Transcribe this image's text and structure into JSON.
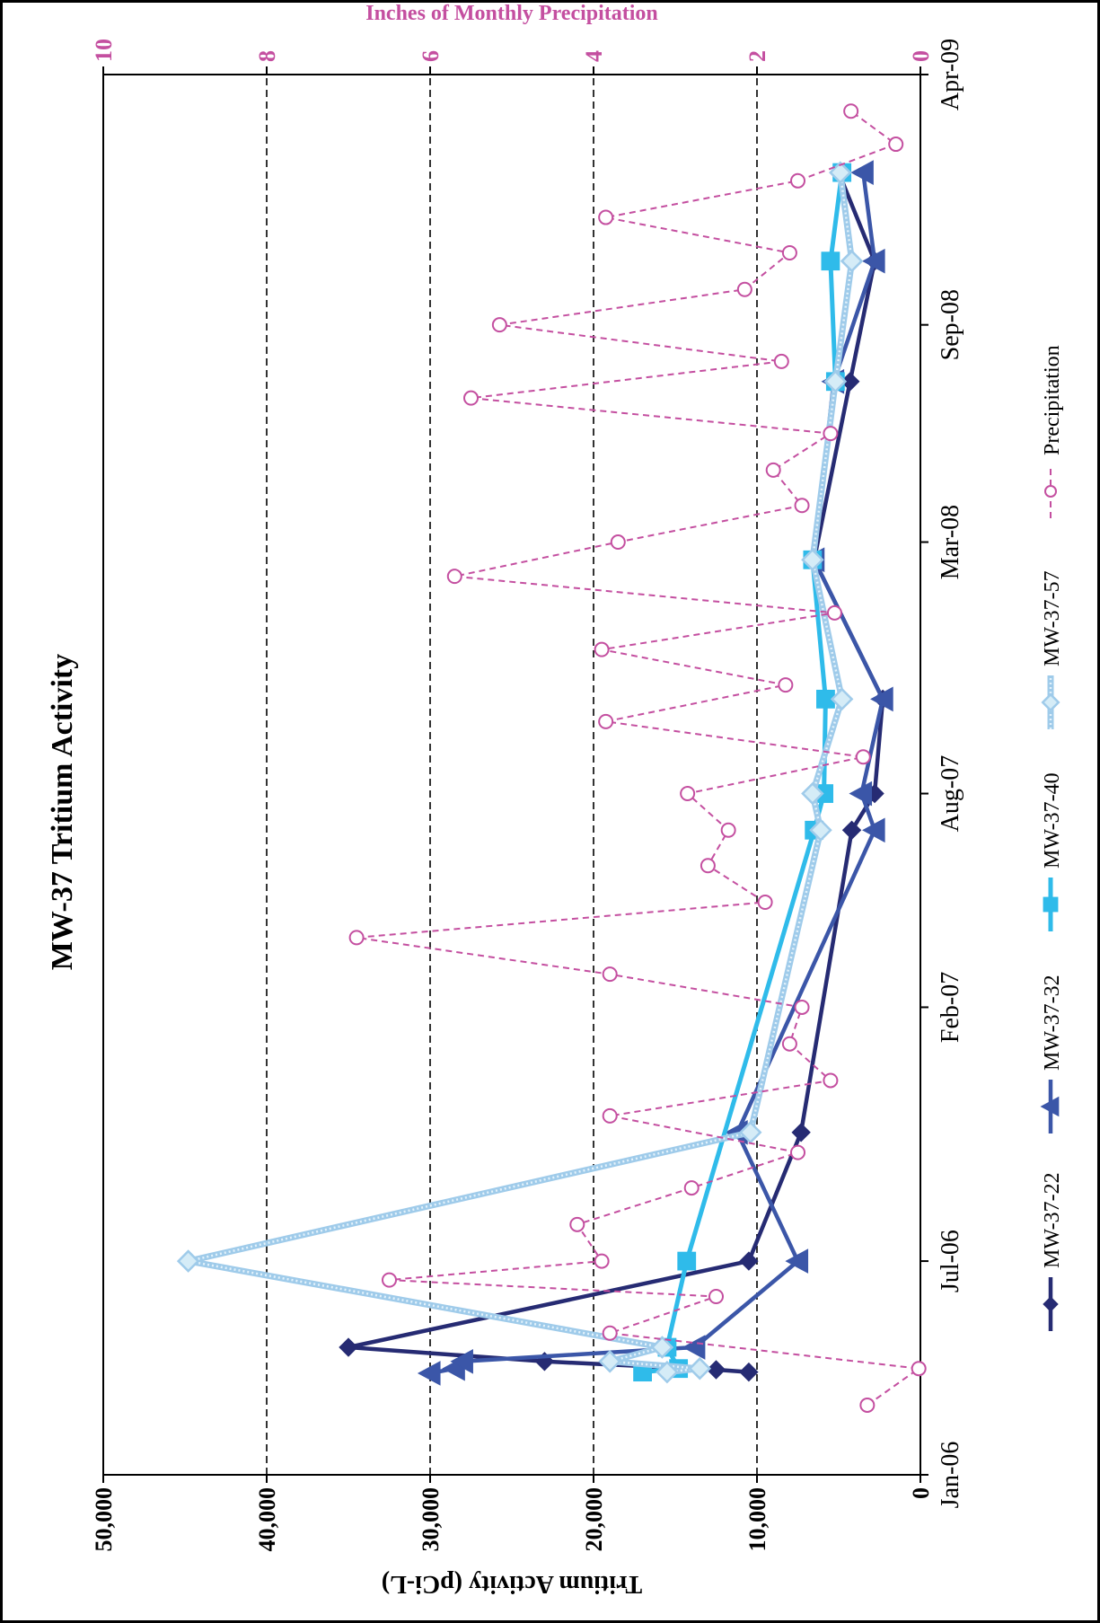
{
  "chart_data": {
    "type": "line",
    "title": "MW-37 Tritium Activity",
    "xlabel": "",
    "ylabel": "Tritium Activity (pCi-L)",
    "y2label": "Inches of Monthly Precipitation",
    "xlim": [
      "2006-01-01",
      "2009-04-01"
    ],
    "ylim": [
      0,
      50000
    ],
    "y2lim": [
      0,
      10
    ],
    "grid": "horizontal dashed",
    "legend_position": "bottom",
    "colors": {
      "MW-37-22": "#262b73",
      "MW-37-32": "#3b56a8",
      "MW-37-40": "#2fbbea",
      "MW-37-57": "#9fcbea",
      "Precipitation": "#c44fa0",
      "title": "#000000",
      "precip_axis": "#c44fa0"
    },
    "x_ticks": [
      {
        "date": "2006-01-01",
        "label": "Jan-06"
      },
      {
        "date": "2006-07-01",
        "label": "Jul-06"
      },
      {
        "date": "2007-02-01",
        "label": "Feb-07"
      },
      {
        "date": "2007-08-01",
        "label": "Aug-07"
      },
      {
        "date": "2008-03-01",
        "label": "Mar-08"
      },
      {
        "date": "2008-09-01",
        "label": "Sep-08"
      },
      {
        "date": "2009-04-01",
        "label": "Apr-09"
      }
    ],
    "y_ticks": [
      {
        "value": 0,
        "label": "0"
      },
      {
        "value": 10000,
        "label": "10,000"
      },
      {
        "value": 20000,
        "label": "20,000"
      },
      {
        "value": 30000,
        "label": "30,000"
      },
      {
        "value": 40000,
        "label": "40,000"
      },
      {
        "value": 50000,
        "label": "50,000"
      }
    ],
    "y2_ticks": [
      {
        "value": 0,
        "label": "0"
      },
      {
        "value": 2,
        "label": "2"
      },
      {
        "value": 4,
        "label": "4"
      },
      {
        "value": 6,
        "label": "6"
      },
      {
        "value": 8,
        "label": "8"
      },
      {
        "value": 10,
        "label": "10"
      }
    ],
    "series": [
      {
        "name": "MW-37-22",
        "axis": "left",
        "marker": "diamond",
        "points": [
          {
            "x": "2006-03-29",
            "y": 10500
          },
          {
            "x": "2006-03-31",
            "y": 12500
          },
          {
            "x": "2006-04-07",
            "y": 23000
          },
          {
            "x": "2006-04-19",
            "y": 35000
          },
          {
            "x": "2006-07-01",
            "y": 10500
          },
          {
            "x": "2006-10-18",
            "y": 7300
          },
          {
            "x": "2007-07-01",
            "y": 4200
          },
          {
            "x": "2007-08-01",
            "y": 2800
          },
          {
            "x": "2007-10-20",
            "y": 2300
          },
          {
            "x": "2008-02-15",
            "y": 6500
          },
          {
            "x": "2008-07-15",
            "y": 4300
          },
          {
            "x": "2008-10-25",
            "y": 2800
          },
          {
            "x": "2009-01-08",
            "y": 5000
          }
        ]
      },
      {
        "name": "MW-37-32",
        "axis": "left",
        "marker": "triangle",
        "points": [
          {
            "x": "2006-03-28",
            "y": 30000
          },
          {
            "x": "2006-04-01",
            "y": 28500
          },
          {
            "x": "2006-04-07",
            "y": 28000
          },
          {
            "x": "2006-04-19",
            "y": 13800
          },
          {
            "x": "2006-07-01",
            "y": 7500
          },
          {
            "x": "2006-10-18",
            "y": 11200
          },
          {
            "x": "2007-07-01",
            "y": 2800
          },
          {
            "x": "2007-08-01",
            "y": 3600
          },
          {
            "x": "2007-10-20",
            "y": 2300
          },
          {
            "x": "2008-02-15",
            "y": 6500
          },
          {
            "x": "2008-07-15",
            "y": 5300
          },
          {
            "x": "2008-10-25",
            "y": 2800
          },
          {
            "x": "2009-01-08",
            "y": 3500
          }
        ]
      },
      {
        "name": "MW-37-40",
        "axis": "left",
        "marker": "square",
        "points": [
          {
            "x": "2006-03-29",
            "y": 17000
          },
          {
            "x": "2006-04-01",
            "y": 14800
          },
          {
            "x": "2006-04-19",
            "y": 15500
          },
          {
            "x": "2006-07-01",
            "y": 14300
          },
          {
            "x": "2007-07-01",
            "y": 6500
          },
          {
            "x": "2007-08-01",
            "y": 5900
          },
          {
            "x": "2007-10-20",
            "y": 5800
          },
          {
            "x": "2008-02-15",
            "y": 6600
          },
          {
            "x": "2008-07-15",
            "y": 5200
          },
          {
            "x": "2008-10-25",
            "y": 5500
          },
          {
            "x": "2009-01-08",
            "y": 4800
          }
        ]
      },
      {
        "name": "MW-37-57",
        "axis": "left",
        "marker": "diamond-open",
        "points": [
          {
            "x": "2006-03-29",
            "y": 15500
          },
          {
            "x": "2006-04-01",
            "y": 13500
          },
          {
            "x": "2006-04-07",
            "y": 19000
          },
          {
            "x": "2006-04-19",
            "y": 15800
          },
          {
            "x": "2006-07-01",
            "y": 44800
          },
          {
            "x": "2006-10-18",
            "y": 10400
          },
          {
            "x": "2007-07-01",
            "y": 6100
          },
          {
            "x": "2007-08-01",
            "y": 6600
          },
          {
            "x": "2007-10-20",
            "y": 4800
          },
          {
            "x": "2008-02-15",
            "y": 6600
          },
          {
            "x": "2008-07-15",
            "y": 5200
          },
          {
            "x": "2008-10-25",
            "y": 4200
          },
          {
            "x": "2009-01-08",
            "y": 4900
          }
        ]
      },
      {
        "name": "Precipitation",
        "axis": "right",
        "marker": "circle-open",
        "points": [
          {
            "x": "2006-03-01",
            "y": 0.65
          },
          {
            "x": "2006-04-01",
            "y": 0.02
          },
          {
            "x": "2006-05-01",
            "y": 3.8
          },
          {
            "x": "2006-06-01",
            "y": 2.5
          },
          {
            "x": "2006-06-15",
            "y": 6.5
          },
          {
            "x": "2006-07-01",
            "y": 3.9
          },
          {
            "x": "2006-08-01",
            "y": 4.2
          },
          {
            "x": "2006-09-01",
            "y": 2.8
          },
          {
            "x": "2006-10-01",
            "y": 1.5
          },
          {
            "x": "2006-11-01",
            "y": 3.8
          },
          {
            "x": "2006-12-01",
            "y": 1.1
          },
          {
            "x": "2007-01-01",
            "y": 1.6
          },
          {
            "x": "2007-02-01",
            "y": 1.45
          },
          {
            "x": "2007-03-01",
            "y": 3.8
          },
          {
            "x": "2007-04-01",
            "y": 6.9
          },
          {
            "x": "2007-05-01",
            "y": 1.9
          },
          {
            "x": "2007-06-01",
            "y": 2.6
          },
          {
            "x": "2007-07-01",
            "y": 2.35
          },
          {
            "x": "2007-08-01",
            "y": 2.85
          },
          {
            "x": "2007-09-01",
            "y": 0.7
          },
          {
            "x": "2007-10-01",
            "y": 3.85
          },
          {
            "x": "2007-11-01",
            "y": 1.65
          },
          {
            "x": "2007-12-01",
            "y": 3.9
          },
          {
            "x": "2008-01-01",
            "y": 1.05
          },
          {
            "x": "2008-02-01",
            "y": 5.7
          },
          {
            "x": "2008-03-01",
            "y": 3.7
          },
          {
            "x": "2008-04-01",
            "y": 1.45
          },
          {
            "x": "2008-05-01",
            "y": 1.8
          },
          {
            "x": "2008-06-01",
            "y": 1.1
          },
          {
            "x": "2008-07-01",
            "y": 5.5
          },
          {
            "x": "2008-08-01",
            "y": 1.7
          },
          {
            "x": "2008-09-01",
            "y": 5.15
          },
          {
            "x": "2008-10-01",
            "y": 2.15
          },
          {
            "x": "2008-11-01",
            "y": 1.6
          },
          {
            "x": "2008-12-01",
            "y": 3.85
          },
          {
            "x": "2009-01-01",
            "y": 1.5
          },
          {
            "x": "2009-02-01",
            "y": 0.3
          },
          {
            "x": "2009-03-01",
            "y": 0.85
          }
        ]
      }
    ]
  }
}
